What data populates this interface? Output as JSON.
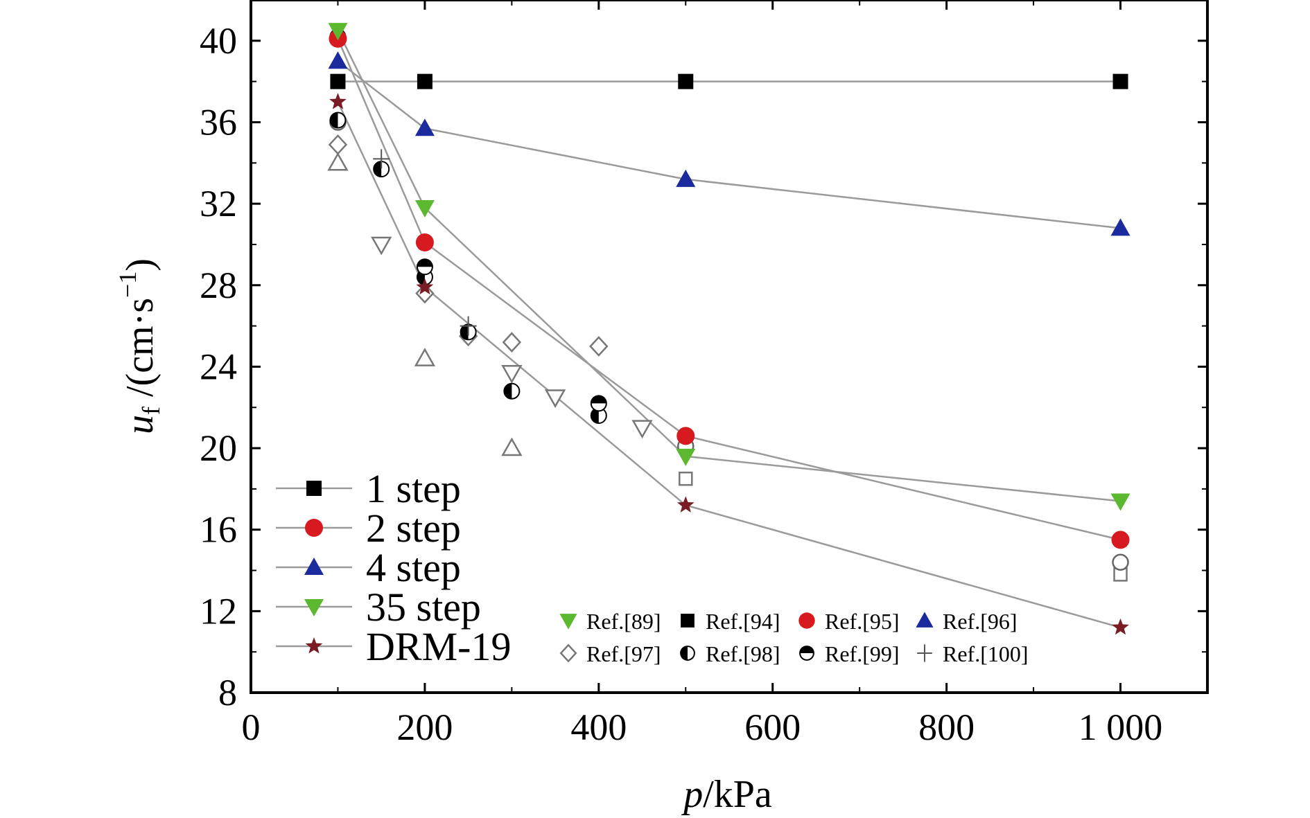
{
  "chart_data": {
    "type": "line",
    "xlabel": "p/kPa",
    "ylabel": "u_f /(cm·s^-1)",
    "xlim": [
      0,
      1100
    ],
    "ylim": [
      8,
      42
    ],
    "xticks": [
      0,
      200,
      400,
      600,
      800,
      1000
    ],
    "xtick_labels": [
      "0",
      "200",
      "400",
      "600",
      "800",
      "1 000"
    ],
    "yticks": [
      8,
      12,
      16,
      20,
      24,
      28,
      32,
      36,
      40
    ],
    "ytick_labels": [
      "8",
      "12",
      "16",
      "20",
      "24",
      "28",
      "32",
      "36",
      "40"
    ],
    "grid": false,
    "series": [
      {
        "name": "1 step",
        "marker": "square-filled",
        "color": "#000000",
        "x": [
          100,
          200,
          500,
          1000
        ],
        "y": [
          38,
          38,
          38,
          38
        ]
      },
      {
        "name": "2 step",
        "marker": "circle-filled",
        "color": "#d71920",
        "x": [
          100,
          200,
          500,
          1000
        ],
        "y": [
          40.1,
          30.1,
          20.6,
          15.5
        ]
      },
      {
        "name": "4 step",
        "marker": "triangle-up-filled",
        "color": "#1b2a9c",
        "x": [
          100,
          200,
          500,
          1000
        ],
        "y": [
          39,
          35.7,
          33.2,
          30.8
        ]
      },
      {
        "name": "35 step",
        "marker": "triangle-down-filled",
        "color": "#5cb82e",
        "x": [
          100,
          200,
          500,
          1000
        ],
        "y": [
          40.5,
          31.8,
          19.6,
          17.4
        ]
      },
      {
        "name": "DRM-19",
        "marker": "star-filled",
        "color": "#7a1c24",
        "x": [
          100,
          200,
          500,
          1000
        ],
        "y": [
          37,
          27.9,
          17.2,
          11.2
        ]
      }
    ],
    "reference_data": [
      {
        "name": "Ref.[89]",
        "marker": "triangle-down-open",
        "x": [
          150,
          300,
          350,
          450
        ],
        "y": [
          30,
          23.7,
          22.5,
          21
        ]
      },
      {
        "name": "Ref.[94]",
        "marker": "square-open",
        "x": [
          500,
          1000
        ],
        "y": [
          18.5,
          13.8
        ]
      },
      {
        "name": "Ref.[95]",
        "marker": "circle-open",
        "x": [
          100,
          500,
          1000
        ],
        "y": [
          36,
          20.1,
          14.4
        ]
      },
      {
        "name": "Ref.[96]",
        "marker": "triangle-up-open",
        "x": [
          100,
          200,
          300
        ],
        "y": [
          34,
          24.4,
          20
        ]
      },
      {
        "name": "Ref.[97]",
        "marker": "diamond-open",
        "x": [
          100,
          200,
          250,
          300,
          400
        ],
        "y": [
          34.9,
          27.6,
          25.5,
          25.2,
          25
        ]
      },
      {
        "name": "Ref.[98]",
        "marker": "circle-half-left",
        "x": [
          100,
          150,
          200,
          250,
          300,
          400
        ],
        "y": [
          36.1,
          33.7,
          28.4,
          25.7,
          22.8,
          21.6
        ]
      },
      {
        "name": "Ref.[99]",
        "marker": "circle-half-top",
        "x": [
          100,
          200,
          400
        ],
        "y": [
          40.2,
          28.9,
          22.2
        ]
      },
      {
        "name": "Ref.[100]",
        "marker": "plus",
        "x": [
          150,
          250
        ],
        "y": [
          34.2,
          26
        ]
      }
    ]
  },
  "legend_items": [
    "1 step",
    "2 step",
    "4 step",
    "35 step",
    "DRM-19"
  ],
  "ref_legend_items": [
    "Ref.[89]",
    "Ref.[94]",
    "Ref.[95]",
    "Ref.[96]",
    "Ref.[97]",
    "Ref.[98]",
    "Ref.[99]",
    "Ref.[100]"
  ],
  "labels": {
    "y_var": "u",
    "y_sub": "f",
    "y_unit": " /(cm·s",
    "y_sup": "−1",
    "y_close": ")",
    "x_var": "p",
    "x_unit": "/kPa"
  }
}
